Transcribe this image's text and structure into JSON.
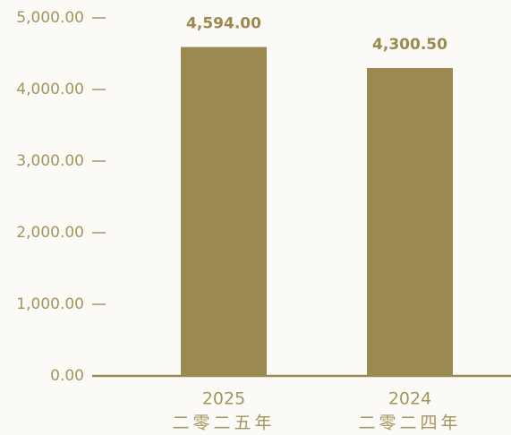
{
  "chart_data": {
    "type": "bar",
    "categories": [
      "2025",
      "2024"
    ],
    "category_sublabels": [
      "二零二五年",
      "二零二四年"
    ],
    "values": [
      4594.0,
      4300.5
    ],
    "value_labels": [
      "4,594.00",
      "4,300.50"
    ],
    "color": "#9a8a50",
    "ylim": [
      0,
      5000
    ],
    "yticks": [
      {
        "value": 0,
        "label": "0.00"
      },
      {
        "value": 1000,
        "label": "1,000.00"
      },
      {
        "value": 2000,
        "label": "2,000.00"
      },
      {
        "value": 3000,
        "label": "3,000.00"
      },
      {
        "value": 4000,
        "label": "4,000.00"
      },
      {
        "value": 5000,
        "label": "5,000.00"
      }
    ]
  }
}
